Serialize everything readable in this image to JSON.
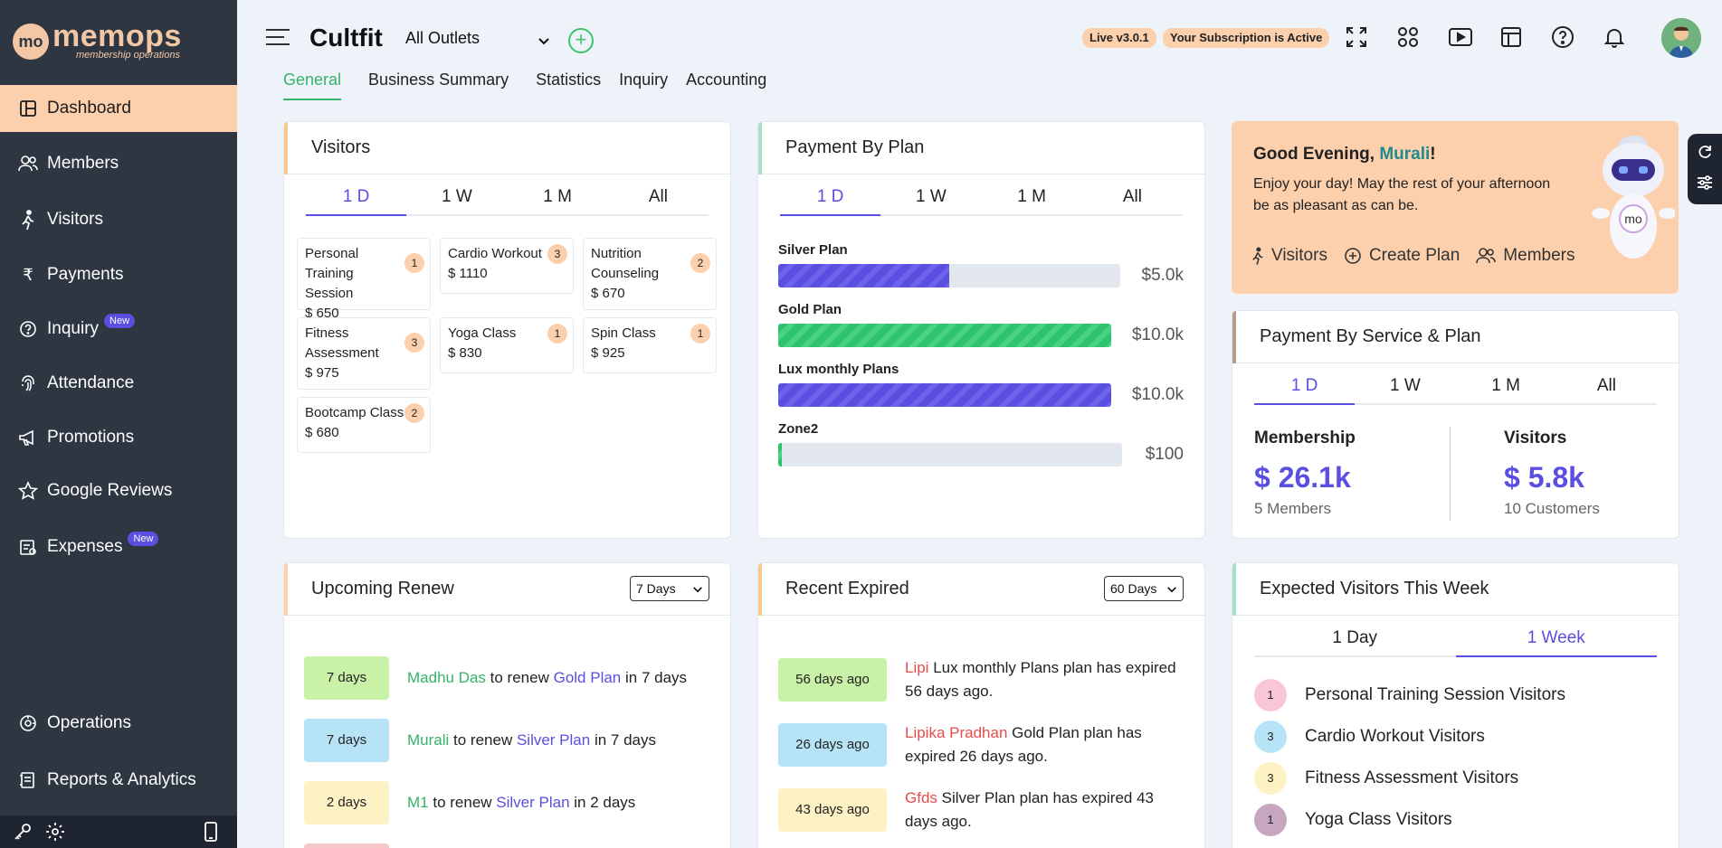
{
  "app": {
    "logo_badge": "mo",
    "logo_name": "memops",
    "logo_tagline": "membership operations",
    "brand": "Cultfit",
    "outlet": "All Outlets",
    "version": "Live v3.0.1",
    "subscription": "Your Subscription is Active"
  },
  "sidebar": {
    "items": [
      {
        "label": "Dashboard",
        "icon": "dashboard-icon"
      },
      {
        "label": "Members",
        "icon": "members-icon"
      },
      {
        "label": "Visitors",
        "icon": "walk-icon"
      },
      {
        "label": "Payments",
        "icon": "rupee-icon"
      },
      {
        "label": "Inquiry",
        "icon": "question-icon",
        "badge": "New"
      },
      {
        "label": "Attendance",
        "icon": "fingerprint-icon"
      },
      {
        "label": "Promotions",
        "icon": "megaphone-icon"
      },
      {
        "label": "Google Reviews",
        "icon": "star-icon"
      },
      {
        "label": "Expenses",
        "icon": "expenses-icon",
        "badge": "New"
      },
      {
        "label": "Operations",
        "icon": "operations-icon"
      },
      {
        "label": "Reports & Analytics",
        "icon": "reports-icon"
      }
    ]
  },
  "tabs": [
    "General",
    "Business Summary",
    "Statistics",
    "Inquiry",
    "Accounting"
  ],
  "periods": [
    "1 D",
    "1 W",
    "1 M",
    "All"
  ],
  "visitors": {
    "title": "Visitors",
    "items": [
      {
        "name": "Personal Training Session",
        "price": "$ 650",
        "count": "1"
      },
      {
        "name": "Cardio Workout",
        "price": "$ 1110",
        "count": "3"
      },
      {
        "name": "Nutrition Counseling",
        "price": "$ 670",
        "count": "2"
      },
      {
        "name": "Fitness Assessment",
        "price": "$ 975",
        "count": "3"
      },
      {
        "name": "Yoga Class",
        "price": "$ 830",
        "count": "1"
      },
      {
        "name": "Spin Class",
        "price": "$ 925",
        "count": "1"
      },
      {
        "name": "Bootcamp Class",
        "price": "$ 680",
        "count": "2"
      }
    ]
  },
  "payment_by_plan": {
    "title": "Payment By Plan",
    "plans": [
      {
        "name": "Silver Plan",
        "amount": "$5.0k",
        "fraction": 0.5,
        "style": "blue"
      },
      {
        "name": "Gold Plan",
        "amount": "$10.0k",
        "fraction": 1.0,
        "style": "green"
      },
      {
        "name": "Lux monthly Plans",
        "amount": "$10.0k",
        "fraction": 1.0,
        "style": "blue"
      },
      {
        "name": "Zone2",
        "amount": "$100",
        "fraction": 0.01,
        "style": "green"
      }
    ]
  },
  "greeting": {
    "hello": "Good Evening, ",
    "name": "Murali",
    "bang": "!",
    "message": "Enjoy your day! May the rest of your afternoon be as pleasant as can be.",
    "links": [
      "Visitors",
      "Create Plan",
      "Members"
    ],
    "robot_label": "mo"
  },
  "payment_by_service": {
    "title": "Payment By Service & Plan",
    "membership_title": "Membership",
    "membership_value": "$ 26.1k",
    "membership_sub": "5 Members",
    "visitors_title": "Visitors",
    "visitors_value": "$ 5.8k",
    "visitors_sub": "10 Customers"
  },
  "upcoming_renew": {
    "title": "Upcoming Renew",
    "filter": "7 Days",
    "rows": [
      {
        "badge": "7 days",
        "color": "#c9f2a8",
        "name": "Madhu Das",
        "mid": " to renew ",
        "plan": "Gold Plan",
        "tail": " in 7 days"
      },
      {
        "badge": "7 days",
        "color": "#b7e3f7",
        "name": "Murali",
        "mid": " to renew ",
        "plan": "Silver Plan",
        "tail": " in 7 days"
      },
      {
        "badge": "2 days",
        "color": "#fdf2c4",
        "name": "M1",
        "mid": " to renew ",
        "plan": "Silver Plan",
        "tail": " in 2 days"
      }
    ]
  },
  "recent_expired": {
    "title": "Recent Expired",
    "filter": "60 Days",
    "rows": [
      {
        "badge": "56 days ago",
        "color": "#c9f2a8",
        "name": "Lipi",
        "text": " Lux monthly Plans plan has expired 56 days ago."
      },
      {
        "badge": "26 days ago",
        "color": "#b7e3f7",
        "name": "Lipika Pradhan",
        "text": " Gold Plan plan has expired 26 days ago."
      },
      {
        "badge": "43 days ago",
        "color": "#fdf2c4",
        "name": "Gfds",
        "text": " Silver Plan plan has expired 43 days ago."
      }
    ]
  },
  "expected_visitors": {
    "title": "Expected Visitors This Week",
    "tabs": [
      "1 Day",
      "1 Week"
    ],
    "rows": [
      {
        "count": "1",
        "color": "#f9c6d6",
        "label": "Personal Training Session Visitors"
      },
      {
        "count": "3",
        "color": "#b7e3f7",
        "label": "Cardio Workout Visitors"
      },
      {
        "count": "3",
        "color": "#fdf2c4",
        "label": "Fitness Assessment Visitors"
      },
      {
        "count": "1",
        "color": "#c7a6c0",
        "label": "Yoga Class Visitors"
      }
    ]
  }
}
